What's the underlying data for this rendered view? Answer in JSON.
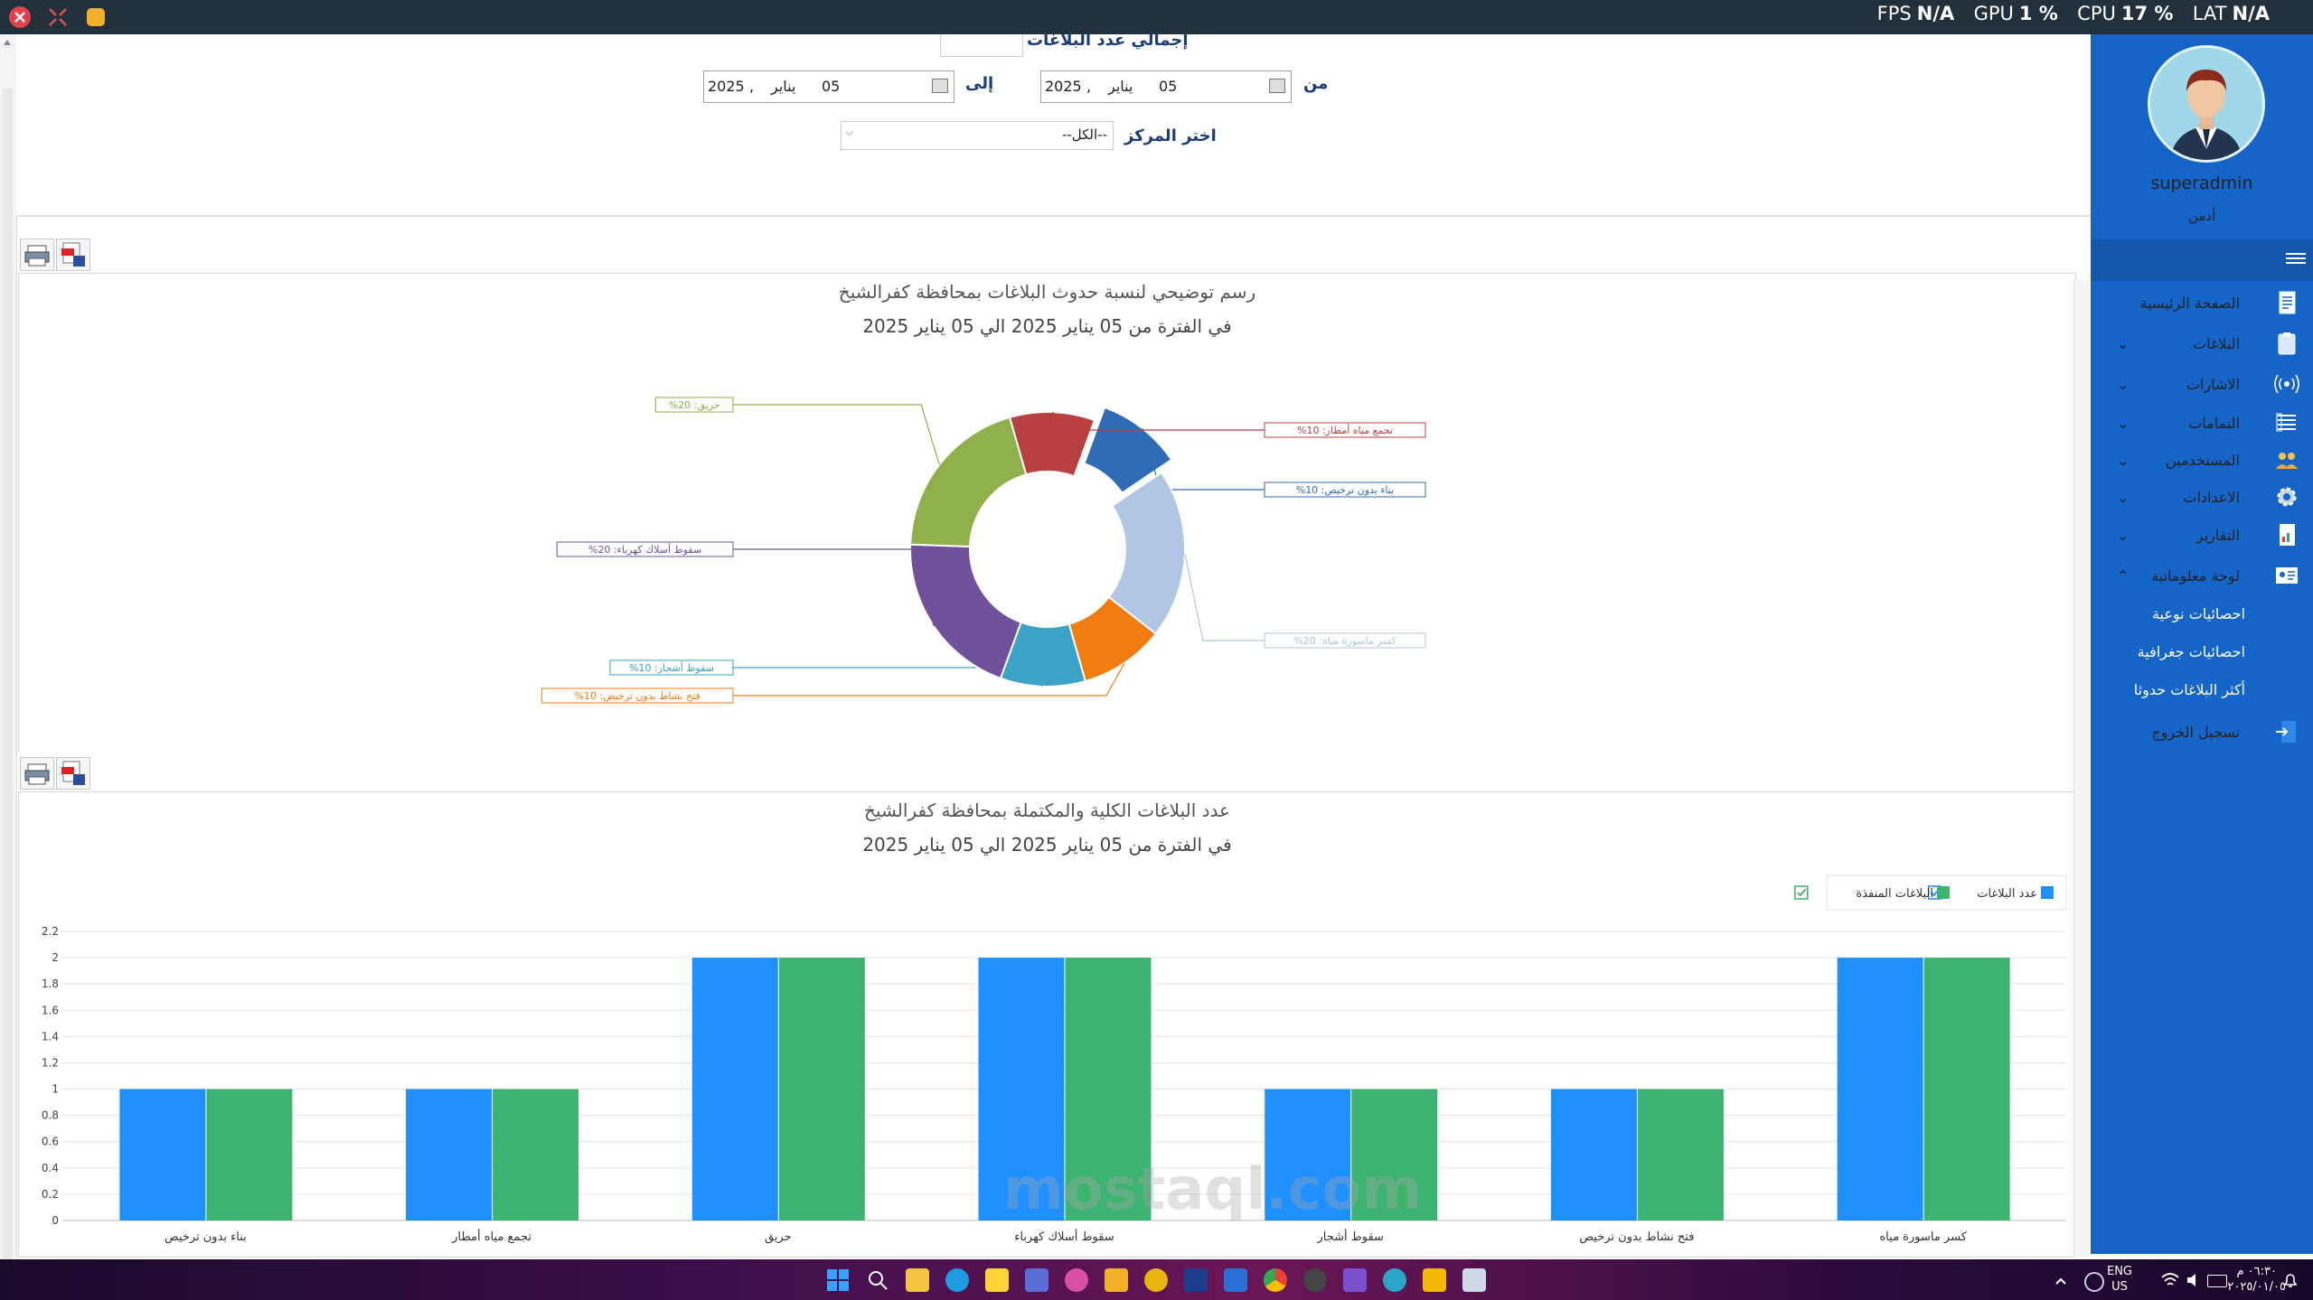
{
  "topbar": {
    "perf": {
      "fps_label": "FPS",
      "fps_value": "N/A",
      "gpu_label": "GPU",
      "gpu_value": "1 %",
      "cpu_label": "CPU",
      "cpu_value": "17 %",
      "lat_label": "LAT",
      "lat_value": "N/A"
    }
  },
  "sidebar": {
    "username": "superadmin",
    "role": "أدمن",
    "menu": [
      {
        "label": "الصفحة الرئيسية",
        "icon": "document-icon",
        "expandable": false
      },
      {
        "label": "البلاغات",
        "icon": "clipboard-icon",
        "expandable": true
      },
      {
        "label": "الاشارات",
        "icon": "signal-icon",
        "expandable": true
      },
      {
        "label": "التمامات",
        "icon": "list-icon",
        "expandable": true
      },
      {
        "label": "المستخدمين",
        "icon": "users-icon",
        "expandable": true
      },
      {
        "label": "الاعدادات",
        "icon": "gear-icon",
        "expandable": true
      },
      {
        "label": "التقارير",
        "icon": "report-icon",
        "expandable": true
      },
      {
        "label": "لوحة معلوماتية",
        "icon": "dashboard-icon",
        "expandable": true,
        "expanded": true
      }
    ],
    "submenu": [
      "احصائيات نوعية",
      "احصائيات جغرافية",
      "أكثر البلاغات حدوثا"
    ],
    "logout": "تسجيل الخروج"
  },
  "filters": {
    "total_label": "إجمالي عدد البلاغات",
    "total_value": "",
    "from_label": "من",
    "to_label": "إلى",
    "from_date": {
      "day": "05",
      "month": "يناير",
      "year": "2025"
    },
    "to_date": {
      "day": "05",
      "month": "يناير",
      "year": "2025"
    },
    "center_label": "اختر المركز",
    "center_value": "--الكل--"
  },
  "colors": {
    "sidebar": "#1565c8",
    "bar_total": "#1e90ff",
    "bar_done": "#3cb371"
  },
  "chart_data": [
    {
      "type": "pie",
      "title": "رسم توضيحي لنسبة حدوث البلاغات بمحافظة كفرالشيخ",
      "subtitle": "في الفترة من 05 يناير 2025 الي 05 يناير 2025",
      "slices": [
        {
          "label": "بناء بدون ترخيص",
          "value": 10,
          "text": "%بناء بدون ترخيص: 10",
          "color": "#2f6cb5",
          "exploded": true
        },
        {
          "label": "كسر ماسورة مياه",
          "value": 20,
          "text": "%كسر ماسورة مياه: 20",
          "color": "#b0c6e4"
        },
        {
          "label": "فتح نشاط بدون ترخيص",
          "value": 10,
          "text": "%فتح نشاط بدون ترخيص: 10",
          "color": "#f07c12"
        },
        {
          "label": "سقوط أشجار",
          "value": 10,
          "text": "%سقوط أشجار: 10",
          "color": "#3aa3c6"
        },
        {
          "label": "سقوط أسلاك كهرباء",
          "value": 20,
          "text": "%سقوط أسلاك كهرباء: 20",
          "color": "#6f529b"
        },
        {
          "label": "حريق",
          "value": 20,
          "text": "%حريق: 20",
          "color": "#8fb04a"
        },
        {
          "label": "تجمع مياه أمطار",
          "value": 10,
          "text": "%تجمع مياه أمطار: 10",
          "color": "#b84040"
        }
      ]
    },
    {
      "type": "bar",
      "title": "عدد البلاغات الكلية والمكتملة بمحافظة كفرالشيخ",
      "subtitle": "في الفترة من 05 يناير 2025 الي 05 يناير 2025",
      "categories": [
        "بناء بدون ترخيص",
        "تجمع مياه أمطار",
        "حريق",
        "سقوط أسلاك كهرباء",
        "سقوط أشجار",
        "فتح نشاط بدون ترخيص",
        "كسر ماسورة مياه"
      ],
      "series": [
        {
          "name": "عدد البلاغات",
          "values": [
            1,
            1,
            2,
            2,
            1,
            1,
            2
          ]
        },
        {
          "name": "البلاغات المنفذة",
          "values": [
            1,
            1,
            2,
            2,
            1,
            1,
            2
          ]
        }
      ],
      "ylim": [
        0,
        2.2
      ],
      "yticks": [
        "0",
        "0.2",
        "0.4",
        "0.6",
        "0.8",
        "1",
        "1.2",
        "1.4",
        "1.6",
        "1.8",
        "2",
        "2.2"
      ],
      "legend": "top-right",
      "grid": true
    }
  ],
  "watermark": "mostaql.com",
  "taskbar": {
    "lang_line1": "ENG",
    "lang_line2": "US",
    "time": "٠٦:٣٠ م",
    "date": "٢٠٢٥/٠١/٠٥"
  }
}
